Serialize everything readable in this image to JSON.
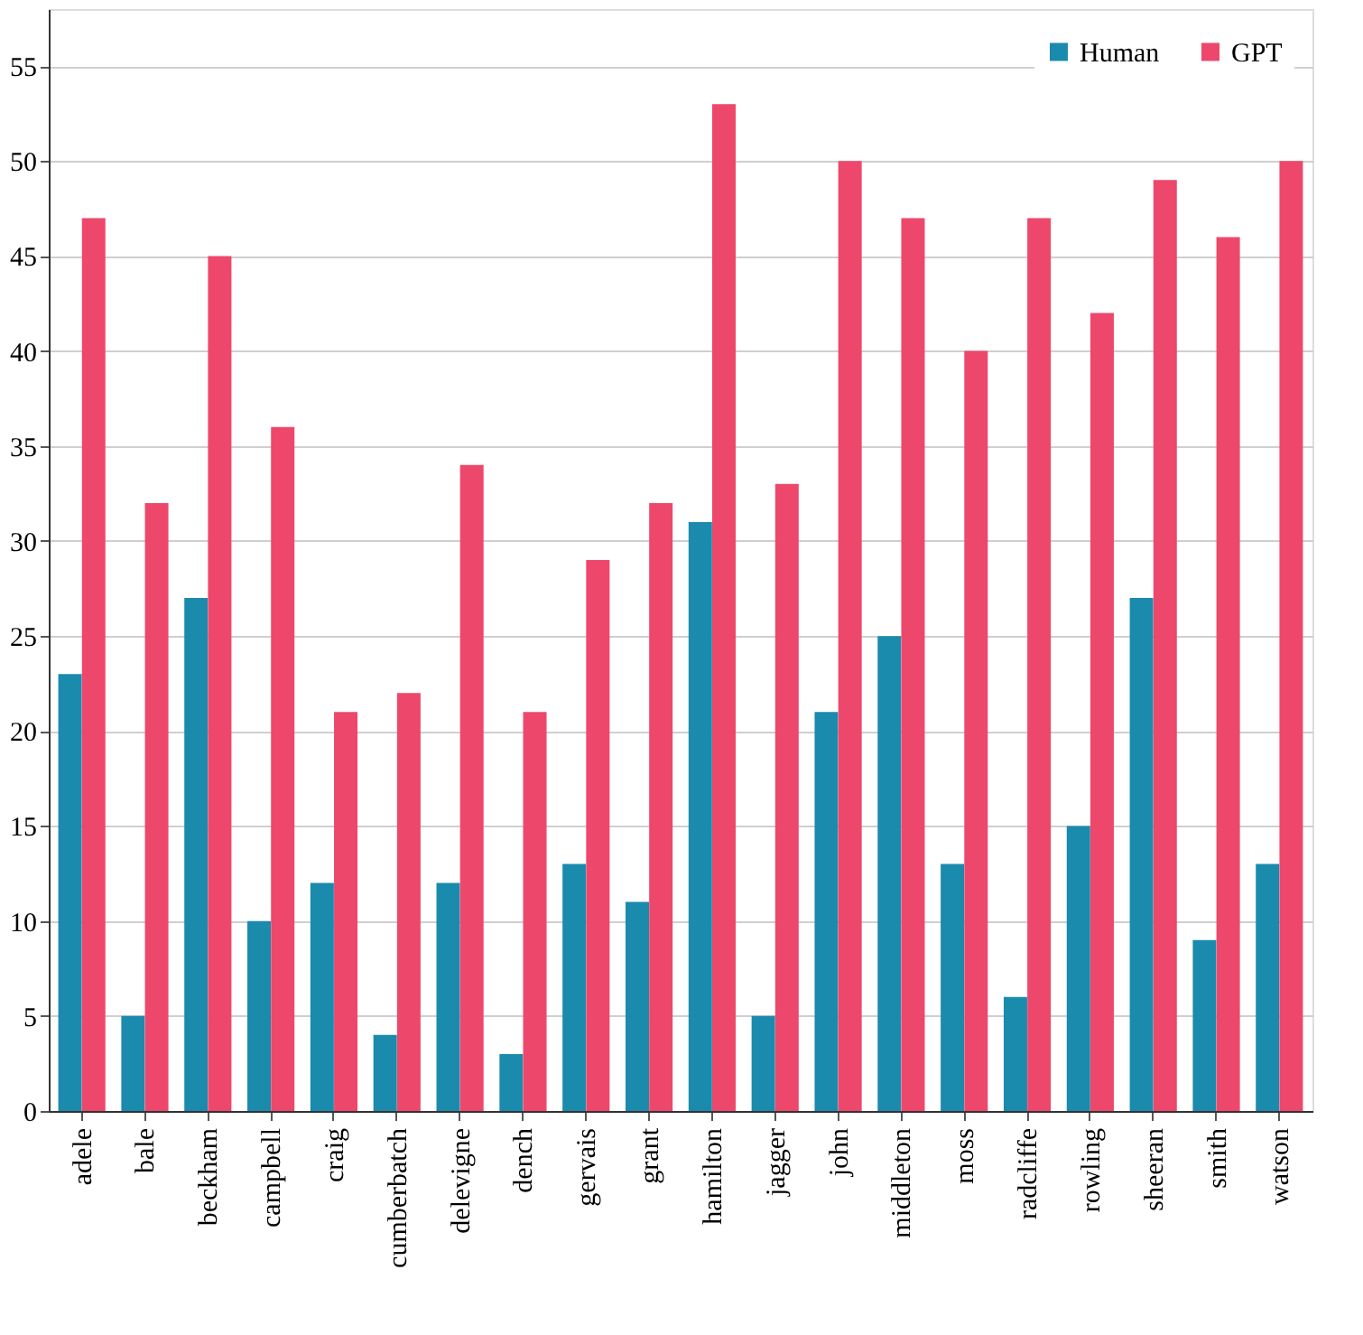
{
  "chart_data": {
    "type": "bar",
    "categories": [
      "adele",
      "bale",
      "beckham",
      "campbell",
      "craig",
      "cumberbatch",
      "delevigne",
      "dench",
      "gervais",
      "grant",
      "hamilton",
      "jagger",
      "john",
      "middleton",
      "moss",
      "radcliffe",
      "rowling",
      "sheeran",
      "smith",
      "watson"
    ],
    "series": [
      {
        "name": "Human",
        "color": "#1a8aad",
        "values": [
          23,
          5,
          27,
          10,
          12,
          4,
          12,
          3,
          13,
          11,
          31,
          5,
          21,
          25,
          13,
          6,
          15,
          27,
          9,
          13
        ]
      },
      {
        "name": "GPT",
        "color": "#ee476c",
        "values": [
          47,
          32,
          45,
          36,
          21,
          22,
          34,
          21,
          29,
          32,
          53,
          33,
          50,
          47,
          40,
          47,
          42,
          49,
          46,
          50
        ]
      }
    ],
    "ylim": [
      0,
      58
    ],
    "yticks": [
      0,
      5,
      10,
      15,
      20,
      25,
      30,
      35,
      40,
      45,
      50,
      55
    ],
    "grid": "y",
    "legend": "top right"
  }
}
